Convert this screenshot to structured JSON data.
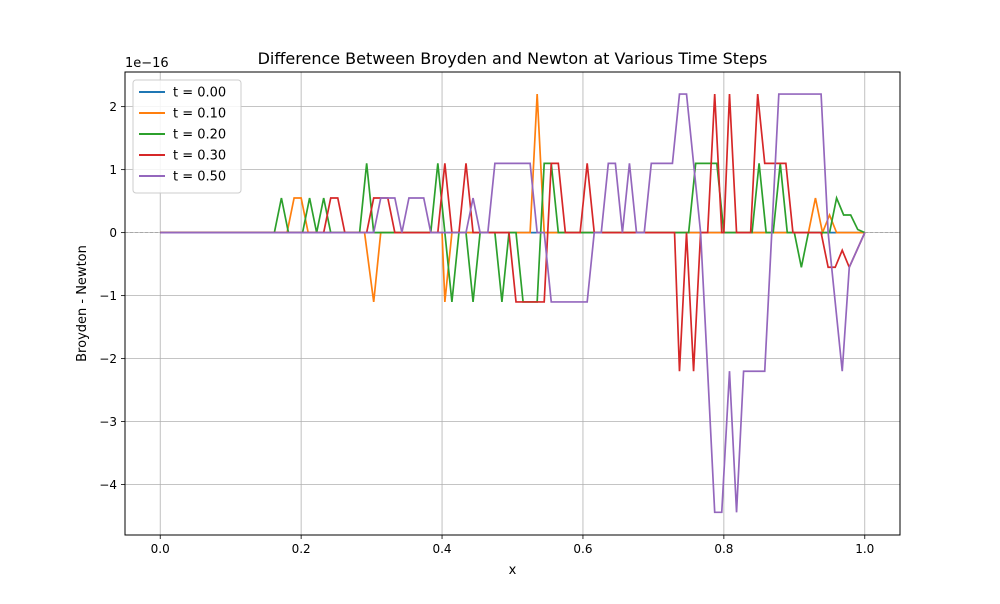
{
  "chart_data": {
    "type": "line",
    "title": "Difference Between Broyden and Newton at Various Time Steps",
    "xlabel": "x",
    "ylabel": "Broyden - Newton",
    "y_offset_label": "1e−16",
    "y_scale_exponent": -16,
    "xlim": [
      -0.05,
      1.05
    ],
    "ylim": [
      -4.8,
      2.55
    ],
    "x_ticks": [
      0.0,
      0.2,
      0.4,
      0.6,
      0.8,
      1.0
    ],
    "x_tick_labels": [
      "0.0",
      "0.2",
      "0.4",
      "0.6",
      "0.8",
      "1.0"
    ],
    "y_ticks": [
      -4,
      -3,
      -2,
      -1,
      0,
      1,
      2
    ],
    "y_tick_labels": [
      "−4",
      "−3",
      "−2",
      "−1",
      "0",
      "1",
      "2"
    ],
    "grid": true,
    "zero_line": true,
    "legend_position": "upper-left",
    "series": [
      {
        "name": "t = 0.00",
        "color": "#1f77b4",
        "points": [
          [
            0.0,
            0
          ],
          [
            1.0,
            0
          ]
        ]
      },
      {
        "name": "t = 0.10",
        "color": "#ff7f0e",
        "points": [
          [
            0.0,
            0
          ],
          [
            0.18,
            0
          ],
          [
            0.19,
            0.55
          ],
          [
            0.2,
            0.55
          ],
          [
            0.21,
            0
          ],
          [
            0.29,
            0
          ],
          [
            0.303,
            -1.1
          ],
          [
            0.313,
            0
          ],
          [
            0.4,
            0
          ],
          [
            0.404,
            -1.1
          ],
          [
            0.414,
            0
          ],
          [
            0.525,
            0
          ],
          [
            0.535,
            2.2
          ],
          [
            0.545,
            0
          ],
          [
            0.92,
            0
          ],
          [
            0.93,
            0.55
          ],
          [
            0.94,
            0
          ],
          [
            0.95,
            0.28
          ],
          [
            0.96,
            0
          ],
          [
            1.0,
            0
          ]
        ]
      },
      {
        "name": "t = 0.20",
        "color": "#2ca02c",
        "points": [
          [
            0.0,
            0
          ],
          [
            0.162,
            0
          ],
          [
            0.172,
            0.55
          ],
          [
            0.182,
            0
          ],
          [
            0.202,
            0
          ],
          [
            0.212,
            0.55
          ],
          [
            0.222,
            0
          ],
          [
            0.232,
            0.55
          ],
          [
            0.242,
            0
          ],
          [
            0.283,
            0
          ],
          [
            0.293,
            1.1
          ],
          [
            0.303,
            0
          ],
          [
            0.384,
            0
          ],
          [
            0.394,
            1.1
          ],
          [
            0.404,
            0
          ],
          [
            0.414,
            -1.1
          ],
          [
            0.424,
            0
          ],
          [
            0.434,
            0
          ],
          [
            0.444,
            -1.1
          ],
          [
            0.454,
            0
          ],
          [
            0.475,
            0
          ],
          [
            0.485,
            -1.1
          ],
          [
            0.495,
            0
          ],
          [
            0.505,
            0
          ],
          [
            0.515,
            -1.1
          ],
          [
            0.535,
            -1.1
          ],
          [
            0.545,
            1.1
          ],
          [
            0.555,
            1.1
          ],
          [
            0.565,
            0
          ],
          [
            0.72,
            0
          ],
          [
            0.73,
            0
          ],
          [
            0.74,
            0
          ],
          [
            0.75,
            0
          ],
          [
            0.76,
            1.1
          ],
          [
            0.79,
            1.1
          ],
          [
            0.8,
            0
          ],
          [
            0.84,
            0
          ],
          [
            0.85,
            1.1
          ],
          [
            0.86,
            0
          ],
          [
            0.87,
            0
          ],
          [
            0.88,
            1.1
          ],
          [
            0.89,
            0
          ],
          [
            0.9,
            0
          ],
          [
            0.91,
            -0.55
          ],
          [
            0.92,
            0
          ],
          [
            0.95,
            0
          ],
          [
            0.96,
            0.55
          ],
          [
            0.97,
            0.28
          ],
          [
            0.98,
            0.28
          ],
          [
            0.99,
            0.05
          ],
          [
            1.0,
            0
          ]
        ]
      },
      {
        "name": "t = 0.30",
        "color": "#d62728",
        "points": [
          [
            0.0,
            0
          ],
          [
            0.232,
            0
          ],
          [
            0.242,
            0.55
          ],
          [
            0.252,
            0.55
          ],
          [
            0.262,
            0
          ],
          [
            0.293,
            0
          ],
          [
            0.303,
            0.55
          ],
          [
            0.323,
            0.55
          ],
          [
            0.333,
            0
          ],
          [
            0.394,
            0
          ],
          [
            0.404,
            1.1
          ],
          [
            0.414,
            0
          ],
          [
            0.424,
            0
          ],
          [
            0.434,
            1.1
          ],
          [
            0.444,
            0
          ],
          [
            0.495,
            0
          ],
          [
            0.505,
            -1.1
          ],
          [
            0.545,
            -1.1
          ],
          [
            0.555,
            1.1
          ],
          [
            0.565,
            1.1
          ],
          [
            0.575,
            0
          ],
          [
            0.596,
            0
          ],
          [
            0.606,
            1.1
          ],
          [
            0.616,
            0
          ],
          [
            0.73,
            0
          ],
          [
            0.737,
            -2.2
          ],
          [
            0.747,
            0
          ],
          [
            0.757,
            -2.2
          ],
          [
            0.767,
            0
          ],
          [
            0.777,
            0
          ],
          [
            0.787,
            2.2
          ],
          [
            0.797,
            0
          ],
          [
            0.8,
            0
          ],
          [
            0.808,
            2.2
          ],
          [
            0.818,
            0
          ],
          [
            0.838,
            0
          ],
          [
            0.848,
            2.2
          ],
          [
            0.858,
            1.1
          ],
          [
            0.888,
            1.1
          ],
          [
            0.898,
            0
          ],
          [
            0.928,
            0
          ],
          [
            0.938,
            0
          ],
          [
            0.948,
            -0.55
          ],
          [
            0.958,
            -0.55
          ],
          [
            0.968,
            -0.28
          ],
          [
            0.978,
            -0.55
          ],
          [
            1.0,
            0
          ]
        ]
      },
      {
        "name": "t = 0.50",
        "color": "#9467bd",
        "points": [
          [
            0.0,
            0
          ],
          [
            0.303,
            0
          ],
          [
            0.313,
            0.55
          ],
          [
            0.333,
            0.55
          ],
          [
            0.343,
            0
          ],
          [
            0.353,
            0.55
          ],
          [
            0.374,
            0.55
          ],
          [
            0.384,
            0
          ],
          [
            0.434,
            0
          ],
          [
            0.444,
            0.55
          ],
          [
            0.454,
            0
          ],
          [
            0.465,
            0
          ],
          [
            0.475,
            1.1
          ],
          [
            0.525,
            1.1
          ],
          [
            0.535,
            0
          ],
          [
            0.545,
            0
          ],
          [
            0.555,
            -1.1
          ],
          [
            0.606,
            -1.1
          ],
          [
            0.616,
            0
          ],
          [
            0.626,
            0
          ],
          [
            0.636,
            1.1
          ],
          [
            0.646,
            1.1
          ],
          [
            0.656,
            0
          ],
          [
            0.666,
            1.1
          ],
          [
            0.676,
            0
          ],
          [
            0.687,
            0
          ],
          [
            0.697,
            1.1
          ],
          [
            0.727,
            1.1
          ],
          [
            0.737,
            2.2
          ],
          [
            0.747,
            2.2
          ],
          [
            0.757,
            1.1
          ],
          [
            0.767,
            0
          ],
          [
            0.777,
            -2.2
          ],
          [
            0.787,
            -4.44
          ],
          [
            0.797,
            -4.44
          ],
          [
            0.808,
            -2.2
          ],
          [
            0.818,
            -4.44
          ],
          [
            0.828,
            -2.2
          ],
          [
            0.858,
            -2.2
          ],
          [
            0.868,
            0
          ],
          [
            0.878,
            2.2
          ],
          [
            0.938,
            2.2
          ],
          [
            0.948,
            0
          ],
          [
            0.958,
            -1.1
          ],
          [
            0.968,
            -2.2
          ],
          [
            0.978,
            -0.55
          ],
          [
            1.0,
            0
          ]
        ]
      }
    ]
  }
}
